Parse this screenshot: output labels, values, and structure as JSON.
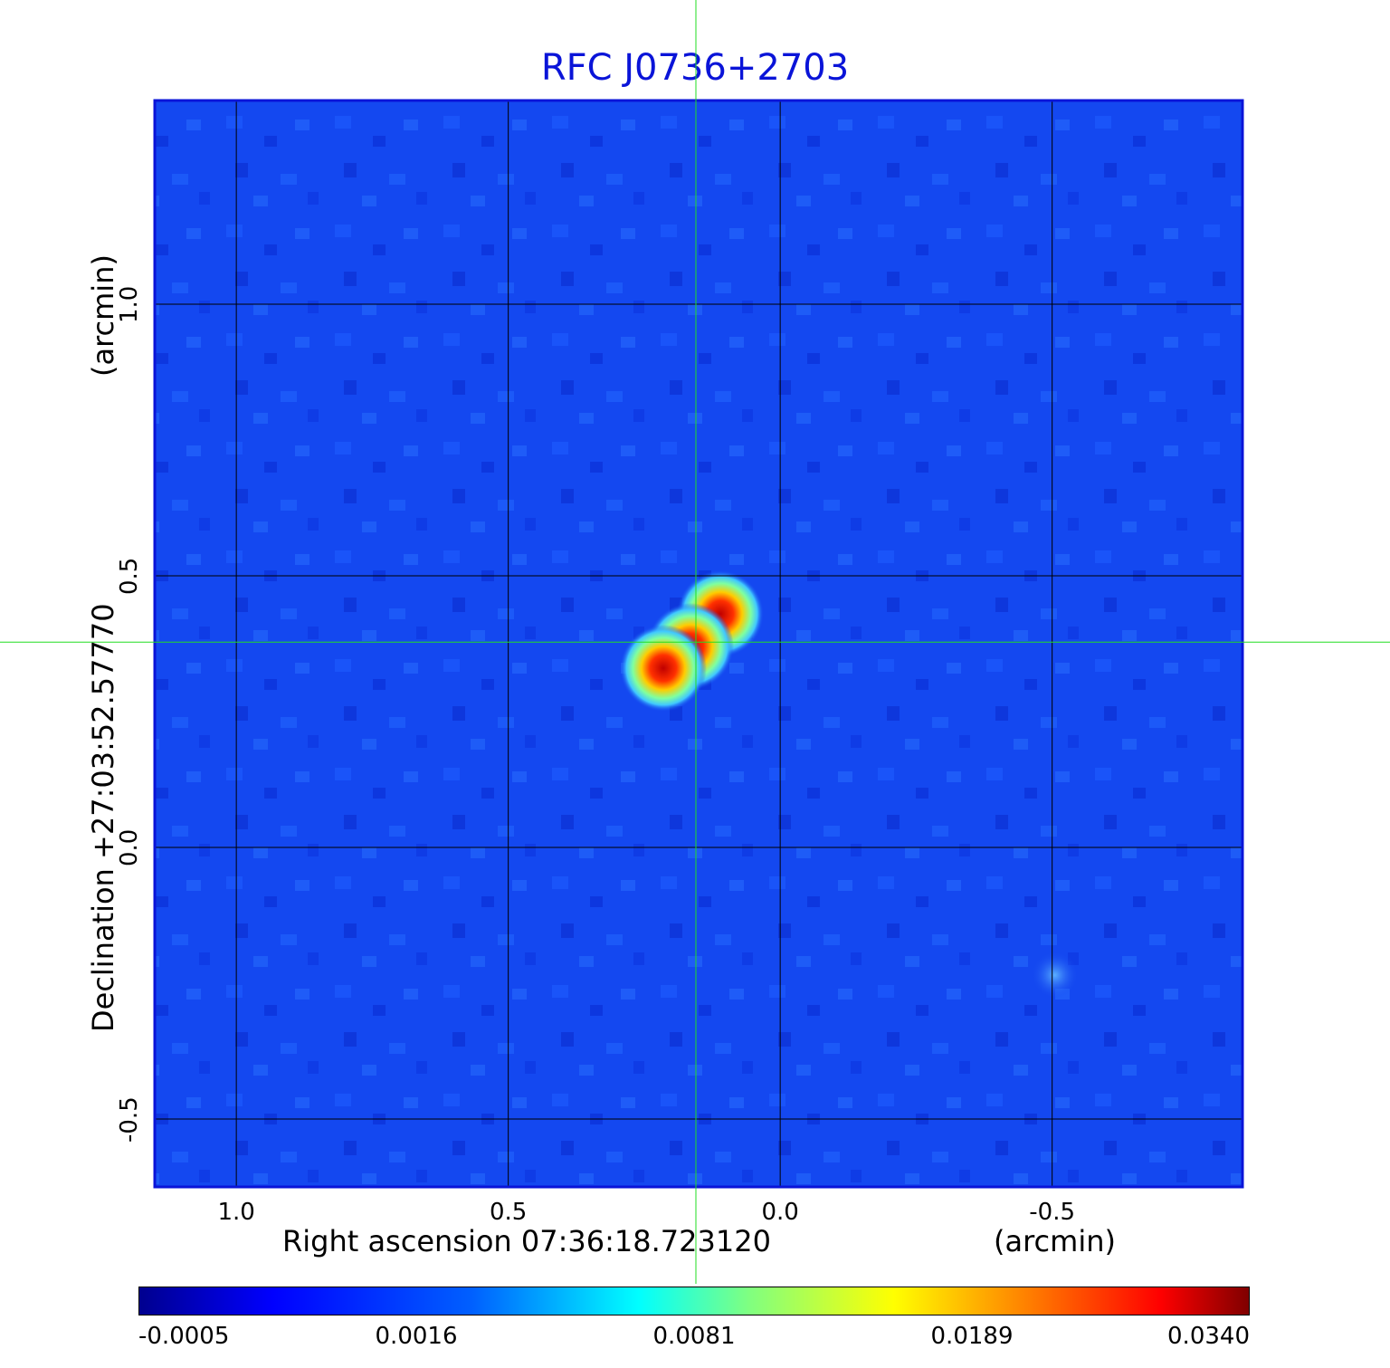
{
  "chart_data": {
    "type": "heatmap",
    "title": "RFC J0736+2703",
    "xlabel": "Right ascension  07:36:18.723120",
    "xunit": "(arcmin)",
    "ylabel": "Declination  +27:03:52.57770",
    "yunit": "(arcmin)",
    "xlim": [
      1.15,
      -0.85
    ],
    "ylim": [
      -0.625,
      1.375
    ],
    "x_ticks": [
      "1.0",
      "0.5",
      "0.0",
      "-0.5"
    ],
    "x_tick_values": [
      1.0,
      0.5,
      0.0,
      -0.5
    ],
    "y_ticks": [
      "-0.5",
      "0.0",
      "0.5",
      "1.0"
    ],
    "y_tick_values": [
      -0.5,
      0.0,
      0.5,
      1.0
    ],
    "grid": true,
    "crosshair": {
      "x": 0.155,
      "y": 0.378
    },
    "colormap": "jet",
    "colorbar_ticks": [
      "-0.0005",
      "0.0016",
      "0.0081",
      "0.0189",
      "0.0340"
    ],
    "sources": [
      {
        "x": 0.11,
        "y": 0.43,
        "peak": 0.034
      },
      {
        "x": 0.165,
        "y": 0.37,
        "peak": 0.026
      },
      {
        "x": 0.215,
        "y": 0.33,
        "peak": 0.033
      },
      {
        "x": -0.505,
        "y": -0.235,
        "peak": 0.004
      }
    ],
    "colors": {
      "title": "#0a14d8",
      "frame": "#0a14d8",
      "background": "#1448f0",
      "crosshair": "#22dd22",
      "grid": "#000000"
    }
  }
}
